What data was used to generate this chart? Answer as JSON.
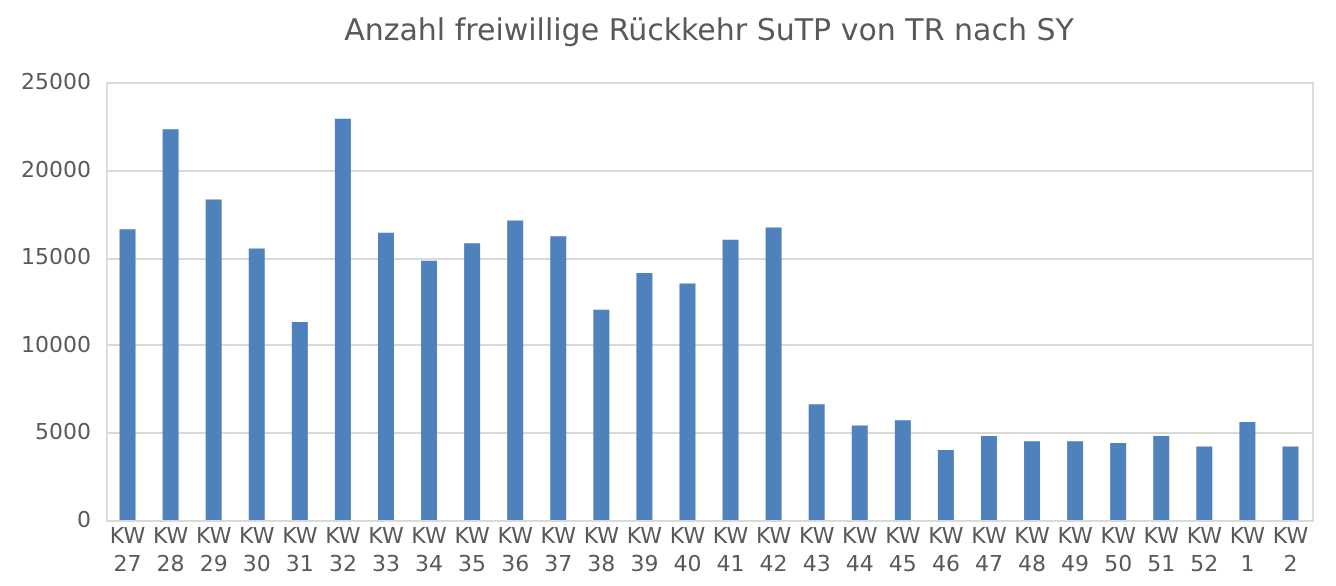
{
  "chart_data": {
    "type": "bar",
    "title": "Anzahl freiwillige Rückkehr SuTP von TR nach SY",
    "categories": [
      "KW 27",
      "KW 28",
      "KW 29",
      "KW 30",
      "KW 31",
      "KW 32",
      "KW 33",
      "KW 34",
      "KW 35",
      "KW 36",
      "KW 37",
      "KW 38",
      "KW 39",
      "KW 40",
      "KW 41",
      "KW 42",
      "KW 43",
      "KW 44",
      "KW 45",
      "KW 46",
      "KW 47",
      "KW 48",
      "KW 49",
      "KW 50",
      "KW 51",
      "KW 52",
      "KW 1",
      "KW 2"
    ],
    "values": [
      16600,
      22300,
      18300,
      15500,
      11300,
      22900,
      16400,
      14800,
      15800,
      17100,
      16200,
      12000,
      14100,
      13500,
      16000,
      16700,
      6600,
      5400,
      5700,
      4000,
      4800,
      4500,
      4500,
      4400,
      4800,
      4200,
      5600,
      4200
    ],
    "color": "#4f81bd",
    "ylim": [
      0,
      25000
    ],
    "yticks": [
      0,
      5000,
      10000,
      15000,
      20000,
      25000
    ],
    "grid": "y"
  }
}
